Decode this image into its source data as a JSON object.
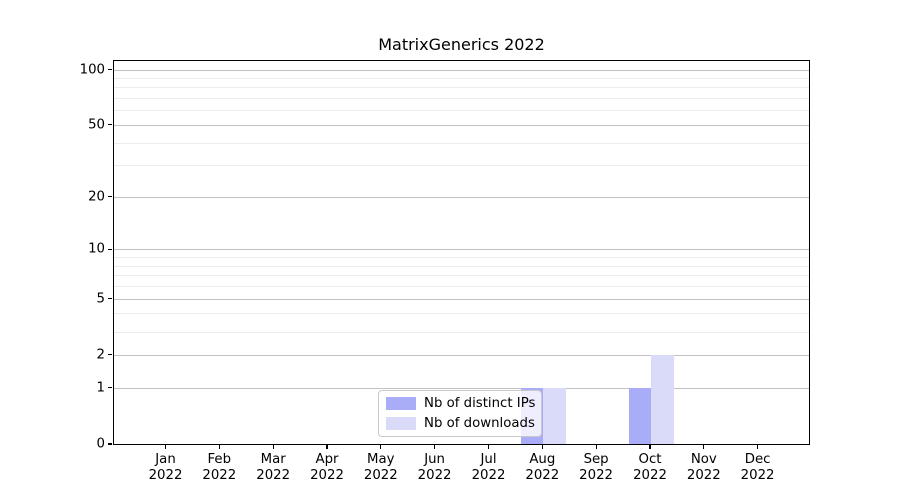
{
  "title": "MatrixGenerics 2022",
  "chart_data": {
    "type": "bar",
    "title": "MatrixGenerics 2022",
    "categories": [
      {
        "month": "Jan",
        "year": "2022"
      },
      {
        "month": "Feb",
        "year": "2022"
      },
      {
        "month": "Mar",
        "year": "2022"
      },
      {
        "month": "Apr",
        "year": "2022"
      },
      {
        "month": "May",
        "year": "2022"
      },
      {
        "month": "Jun",
        "year": "2022"
      },
      {
        "month": "Jul",
        "year": "2022"
      },
      {
        "month": "Aug",
        "year": "2022"
      },
      {
        "month": "Sep",
        "year": "2022"
      },
      {
        "month": "Oct",
        "year": "2022"
      },
      {
        "month": "Nov",
        "year": "2022"
      },
      {
        "month": "Dec",
        "year": "2022"
      }
    ],
    "series": [
      {
        "name": "Nb of distinct IPs",
        "color": "#a9acf7",
        "values": [
          0,
          0,
          0,
          0,
          0,
          0,
          0,
          1,
          0,
          1,
          0,
          0
        ]
      },
      {
        "name": "Nb of downloads",
        "color": "#d9dbf9",
        "values": [
          0,
          0,
          0,
          0,
          0,
          0,
          0,
          1,
          0,
          2,
          0,
          0
        ]
      }
    ],
    "yscale": "log10(1+y)",
    "ylim": [
      0,
      121
    ],
    "y_major_ticks": [
      0,
      1,
      2,
      5,
      10,
      20,
      50,
      100
    ],
    "y_minor_gridlines": [
      3,
      4,
      6,
      7,
      8,
      9,
      30,
      40,
      60,
      70,
      80,
      90
    ],
    "grid": "horizontal major+minor",
    "legend_position": "inside-bottom-center",
    "xlabel": "",
    "ylabel": ""
  }
}
